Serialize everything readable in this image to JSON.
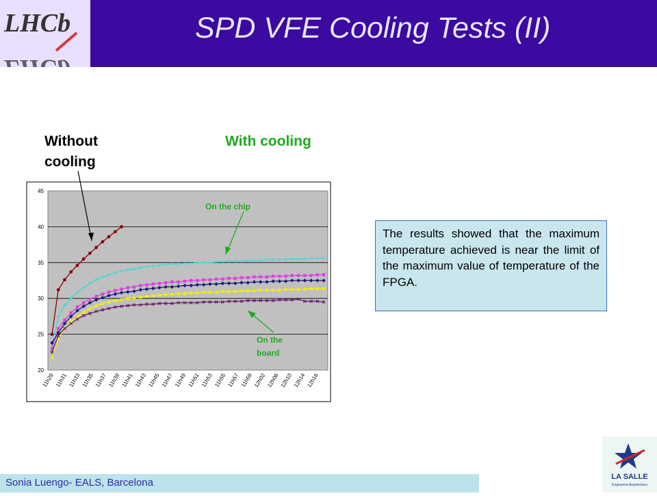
{
  "header": {
    "title": "SPD VFE  Cooling Tests (II)",
    "logo_text": "LHCb"
  },
  "labels": {
    "without_cooling": "Without cooling",
    "with_cooling": "With cooling"
  },
  "annotations": {
    "on_chip": "On the chip",
    "on_board": "On the board"
  },
  "note": {
    "text": "The results showed that the maximum temperature achieved is near the limit of the maximum value of temperature of the FPGA."
  },
  "footer": {
    "text": "Sonia Luengo- EALS, Barcelona"
  },
  "brand": {
    "name": "LA SALLE",
    "subtitle": "Enginyeria Arquitectura"
  },
  "colors": {
    "header_bg": "#3b0aa0",
    "plot_bg": "#c0c0c0",
    "accent_green": "#1faa1f"
  },
  "chart_data": {
    "type": "line",
    "xlabel": "",
    "ylabel": "",
    "ylim": [
      20,
      45
    ],
    "yticks": [
      20,
      25,
      30,
      35,
      40,
      45
    ],
    "grid": true,
    "xticks": [
      "11h29",
      "11h31",
      "11h33",
      "11h35",
      "11h37",
      "11h39",
      "11h41",
      "11h43",
      "11h45",
      "11h47",
      "11h49",
      "11h51",
      "11h53",
      "11h55",
      "11h57",
      "11h59",
      "12h02",
      "12h06",
      "12h10",
      "12h14",
      "12h16"
    ],
    "x_count": 44,
    "series": [
      {
        "color": "#8b0000",
        "marker": "circle",
        "values": [
          25.0,
          31.2,
          32.6,
          33.7,
          34.6,
          35.5,
          36.3,
          37.1,
          37.9,
          38.6,
          39.3,
          40.0
        ]
      },
      {
        "color": "#3fd8d8",
        "marker": "star",
        "values": [
          23.5,
          27.5,
          29.0,
          30.0,
          30.8,
          31.5,
          32.1,
          32.6,
          33.0,
          33.3,
          33.6,
          33.8,
          34.0,
          34.1,
          34.3,
          34.4,
          34.5,
          34.6,
          34.7,
          34.8,
          34.8,
          34.9,
          34.9,
          35.0,
          35.0,
          35.0,
          35.1,
          35.1,
          35.2,
          35.2,
          35.2,
          35.3,
          35.3,
          35.3,
          35.4,
          35.4,
          35.4,
          35.5,
          35.5,
          35.5,
          35.5,
          35.6,
          35.6,
          35.6
        ]
      },
      {
        "color": "#e040e0",
        "marker": "square",
        "values": [
          23.0,
          25.8,
          27.0,
          28.0,
          28.8,
          29.4,
          29.9,
          30.3,
          30.6,
          30.9,
          31.1,
          31.3,
          31.5,
          31.6,
          31.8,
          31.9,
          32.0,
          32.1,
          32.2,
          32.3,
          32.3,
          32.4,
          32.5,
          32.5,
          32.6,
          32.6,
          32.7,
          32.7,
          32.8,
          32.8,
          32.9,
          32.9,
          33.0,
          33.0,
          33.0,
          33.1,
          33.1,
          33.1,
          33.2,
          33.2,
          33.2,
          33.2,
          33.3,
          33.3
        ]
      },
      {
        "color": "#1a1a7a",
        "marker": "diamond",
        "values": [
          23.8,
          25.2,
          26.5,
          27.5,
          28.3,
          28.9,
          29.4,
          29.8,
          30.1,
          30.4,
          30.6,
          30.8,
          30.9,
          31.0,
          31.2,
          31.3,
          31.4,
          31.5,
          31.6,
          31.6,
          31.7,
          31.8,
          31.8,
          31.9,
          31.9,
          32.0,
          32.0,
          32.1,
          32.1,
          32.1,
          32.2,
          32.2,
          32.3,
          32.3,
          32.3,
          32.4,
          32.4,
          32.4,
          32.5,
          32.5,
          32.5,
          32.5,
          32.5,
          32.5
        ]
      },
      {
        "color": "#f2f200",
        "marker": "triangle",
        "values": [
          21.8,
          24.4,
          25.8,
          26.8,
          27.5,
          28.1,
          28.6,
          29.0,
          29.3,
          29.5,
          29.7,
          29.9,
          30.0,
          30.1,
          30.2,
          30.3,
          30.4,
          30.5,
          30.6,
          30.6,
          30.7,
          30.7,
          30.8,
          30.8,
          30.9,
          30.9,
          30.9,
          31.0,
          31.0,
          31.0,
          31.1,
          31.1,
          31.1,
          31.2,
          31.2,
          31.2,
          31.2,
          31.3,
          31.3,
          31.3,
          31.3,
          31.4,
          31.4,
          31.4
        ]
      },
      {
        "color": "#6a1a6a",
        "marker": "x",
        "values": [
          22.5,
          24.8,
          25.8,
          26.5,
          27.1,
          27.6,
          27.9,
          28.2,
          28.4,
          28.6,
          28.8,
          28.9,
          29.0,
          29.1,
          29.1,
          29.2,
          29.2,
          29.3,
          29.3,
          29.3,
          29.4,
          29.4,
          29.4,
          29.4,
          29.5,
          29.5,
          29.5,
          29.5,
          29.6,
          29.6,
          29.6,
          29.7,
          29.7,
          29.7,
          29.7,
          29.7,
          29.8,
          29.8,
          29.8,
          29.9,
          29.6,
          29.6,
          29.6,
          29.5
        ]
      }
    ]
  }
}
